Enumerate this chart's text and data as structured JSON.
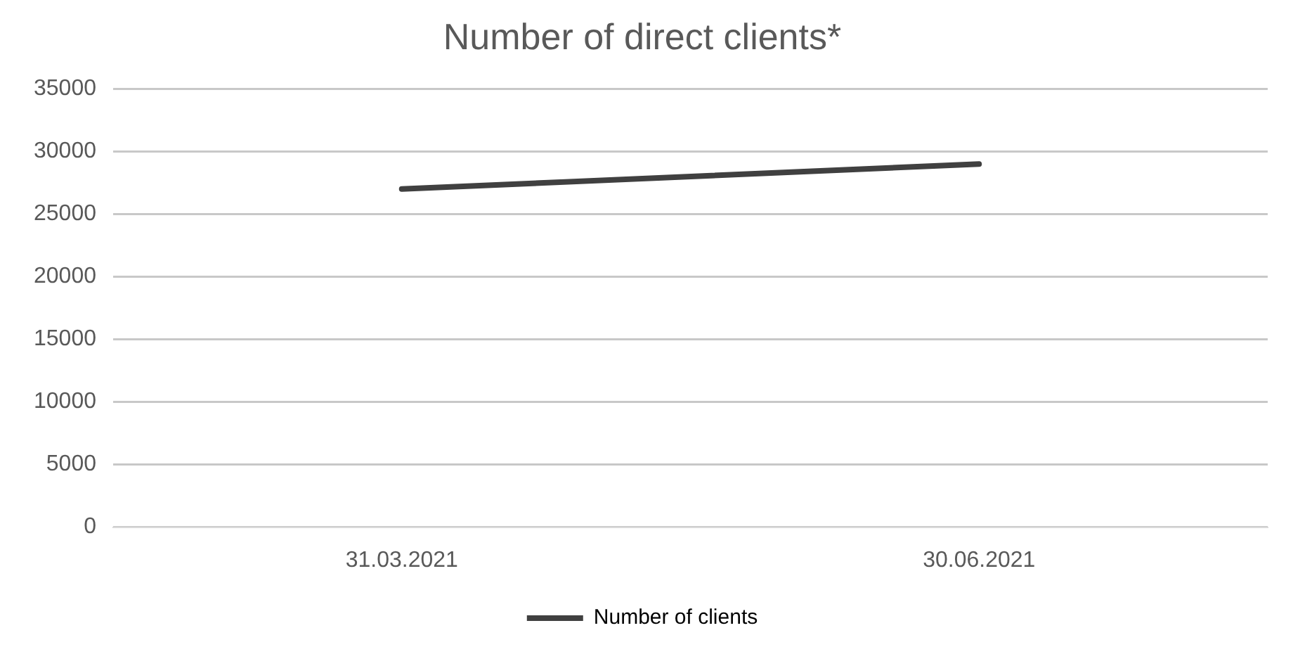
{
  "chart_data": {
    "type": "line",
    "title": "Number of direct clients*",
    "categories": [
      "31.03.2021",
      "30.06.2021"
    ],
    "series": [
      {
        "name": "Number of clients",
        "color": "#404040",
        "values": [
          27000,
          29000
        ]
      }
    ],
    "ylim": [
      0,
      35000
    ],
    "yticks": [
      0,
      5000,
      10000,
      15000,
      20000,
      25000,
      30000,
      35000
    ],
    "grid": "y",
    "legend": "bottom",
    "marker": "none",
    "line_style": "solid"
  }
}
